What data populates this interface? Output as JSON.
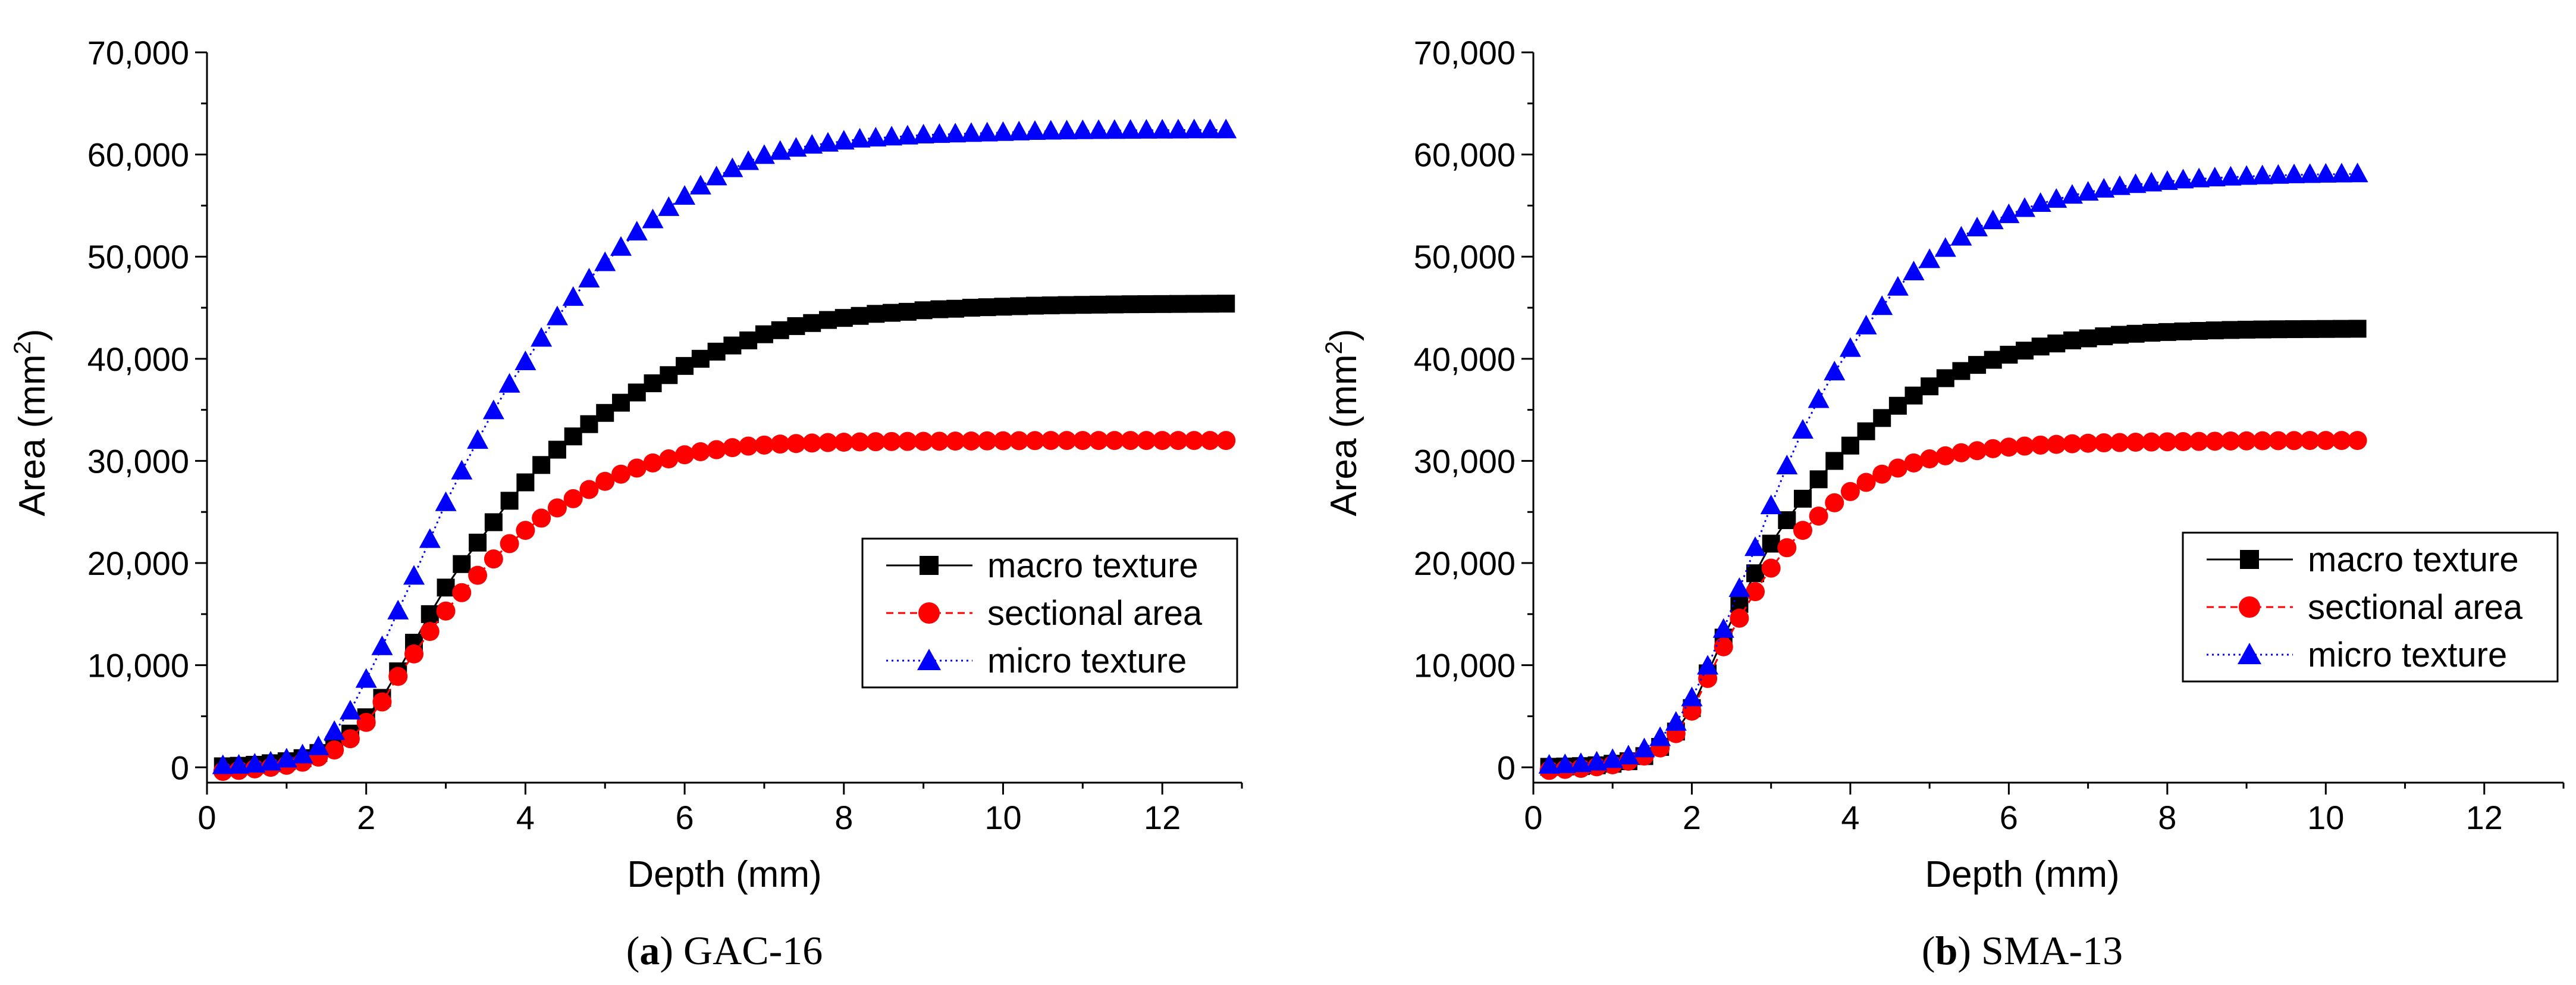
{
  "chart_data": [
    {
      "type": "line",
      "panel_label": "a",
      "caption": "GAC-16",
      "xlabel": "Depth (mm)",
      "ylabel": "Area (mm",
      "ylabel_sup": "2",
      "ylabel_close": ")",
      "xlim": [
        0,
        13
      ],
      "ylim": [
        -1500,
        70000
      ],
      "xticks": [
        0,
        2,
        4,
        6,
        8,
        10,
        12
      ],
      "yticks": [
        0,
        10000,
        20000,
        30000,
        40000,
        50000,
        60000,
        70000
      ],
      "xtick_labels": [
        "0",
        "2",
        "4",
        "6",
        "8",
        "10",
        "12"
      ],
      "ytick_labels": [
        "0",
        "10,000",
        "20,000",
        "30,000",
        "40,000",
        "50,000",
        "60,000",
        "70,000"
      ],
      "legend": "right-middle",
      "series": [
        {
          "name": "macro texture",
          "color": "#000000",
          "marker": "square",
          "line": "solid",
          "x_start": 0.2,
          "x_step": 0.2,
          "values": [
            100,
            150,
            250,
            400,
            600,
            900,
            1400,
            2200,
            3300,
            4900,
            6800,
            9400,
            12200,
            15000,
            17600,
            19900,
            22000,
            24000,
            26100,
            27900,
            29600,
            31100,
            32400,
            33600,
            34700,
            35700,
            36700,
            37600,
            38400,
            39300,
            40000,
            40700,
            41300,
            41800,
            42400,
            42800,
            43200,
            43500,
            43800,
            44000,
            44200,
            44400,
            44500,
            44600,
            44750,
            44850,
            44900,
            45000,
            45050,
            45100,
            45150,
            45200,
            45230,
            45260,
            45280,
            45300,
            45320,
            45340,
            45350,
            45360,
            45370,
            45380,
            45390,
            45400
          ]
        },
        {
          "name": "sectional area",
          "color": "#ff0000",
          "marker": "circle",
          "line": "dashed",
          "x_start": 0.2,
          "x_step": 0.2,
          "values": [
            -400,
            -300,
            -150,
            0,
            200,
            500,
            1000,
            1700,
            2800,
            4400,
            6400,
            8900,
            11100,
            13300,
            15300,
            17100,
            18800,
            20400,
            21900,
            23200,
            24400,
            25400,
            26300,
            27200,
            28000,
            28700,
            29300,
            29800,
            30200,
            30600,
            30900,
            31100,
            31300,
            31450,
            31550,
            31650,
            31700,
            31750,
            31800,
            31830,
            31860,
            31880,
            31900,
            31910,
            31920,
            31930,
            31940,
            31950,
            31960,
            31970,
            31980,
            31990,
            32000,
            32000,
            32000,
            32000,
            32000,
            32000,
            32000,
            32000,
            32000,
            32000,
            32000,
            32000
          ]
        },
        {
          "name": "micro texture",
          "color": "#0000ff",
          "marker": "triangle",
          "line": "dotted",
          "x_start": 0.2,
          "x_step": 0.2,
          "values": [
            150,
            200,
            300,
            500,
            800,
            1200,
            2000,
            3500,
            5500,
            8600,
            11800,
            15300,
            18700,
            22300,
            25900,
            29000,
            32000,
            34900,
            37500,
            39700,
            42000,
            44100,
            46000,
            47800,
            49400,
            50900,
            52400,
            53600,
            54800,
            55900,
            56900,
            57800,
            58600,
            59300,
            59900,
            60300,
            60600,
            60900,
            61100,
            61300,
            61500,
            61600,
            61700,
            61800,
            61900,
            61950,
            62000,
            62050,
            62100,
            62150,
            62200,
            62250,
            62280,
            62300,
            62320,
            62340,
            62350,
            62360,
            62370,
            62380,
            62390,
            62400,
            62400,
            62400
          ]
        }
      ]
    },
    {
      "type": "line",
      "panel_label": "b",
      "caption": "SMA-13",
      "xlabel": "Depth (mm)",
      "ylabel": "Area (mm",
      "ylabel_sup": "2",
      "ylabel_close": ")",
      "xlim": [
        0,
        13
      ],
      "ylim": [
        -1500,
        70000
      ],
      "xticks": [
        0,
        2,
        4,
        6,
        8,
        10,
        12
      ],
      "yticks": [
        0,
        10000,
        20000,
        30000,
        40000,
        50000,
        60000,
        70000
      ],
      "xtick_labels": [
        "0",
        "2",
        "4",
        "6",
        "8",
        "10",
        "12"
      ],
      "ytick_labels": [
        "0",
        "10,000",
        "20,000",
        "30,000",
        "40,000",
        "50,000",
        "60,000",
        "70,000"
      ],
      "legend": "right-middle",
      "series": [
        {
          "name": "macro texture",
          "color": "#000000",
          "marker": "square",
          "line": "solid",
          "x_start": 0.2,
          "x_step": 0.2,
          "values": [
            50,
            80,
            120,
            200,
            350,
            600,
            1100,
            2000,
            3500,
            5800,
            9200,
            12700,
            16000,
            19000,
            21900,
            24200,
            26300,
            28200,
            30000,
            31500,
            32900,
            34200,
            35400,
            36400,
            37300,
            38100,
            38800,
            39400,
            39900,
            40400,
            40800,
            41200,
            41500,
            41800,
            42000,
            42200,
            42350,
            42450,
            42550,
            42620,
            42680,
            42730,
            42780,
            42820,
            42850,
            42870,
            42890,
            42900,
            42910,
            42920,
            42930,
            42940
          ]
        },
        {
          "name": "sectional area",
          "color": "#ff0000",
          "marker": "circle",
          "line": "dashed",
          "x_start": 0.2,
          "x_step": 0.2,
          "values": [
            -300,
            -200,
            -100,
            50,
            250,
            600,
            1100,
            1900,
            3300,
            5500,
            8700,
            11800,
            14600,
            17200,
            19500,
            21500,
            23200,
            24600,
            25900,
            27000,
            27900,
            28700,
            29300,
            29800,
            30200,
            30500,
            30800,
            31000,
            31200,
            31350,
            31450,
            31550,
            31620,
            31680,
            31730,
            31770,
            31800,
            31830,
            31850,
            31870,
            31890,
            31910,
            31930,
            31950,
            31960,
            31970,
            31980,
            31990,
            32000,
            32000,
            32000,
            32000
          ]
        },
        {
          "name": "micro texture",
          "color": "#0000ff",
          "marker": "triangle",
          "line": "dotted",
          "x_start": 0.2,
          "x_step": 0.2,
          "values": [
            200,
            250,
            350,
            500,
            750,
            1100,
            1800,
            2900,
            4400,
            6800,
            9900,
            13500,
            17500,
            21500,
            25600,
            29500,
            33000,
            36000,
            38700,
            41000,
            43200,
            45100,
            47000,
            48500,
            49700,
            50800,
            51900,
            52800,
            53500,
            54100,
            54700,
            55200,
            55600,
            56000,
            56300,
            56600,
            56850,
            57050,
            57200,
            57350,
            57500,
            57600,
            57700,
            57780,
            57850,
            57900,
            57950,
            58000,
            58030,
            58060,
            58080,
            58100
          ]
        }
      ]
    }
  ]
}
